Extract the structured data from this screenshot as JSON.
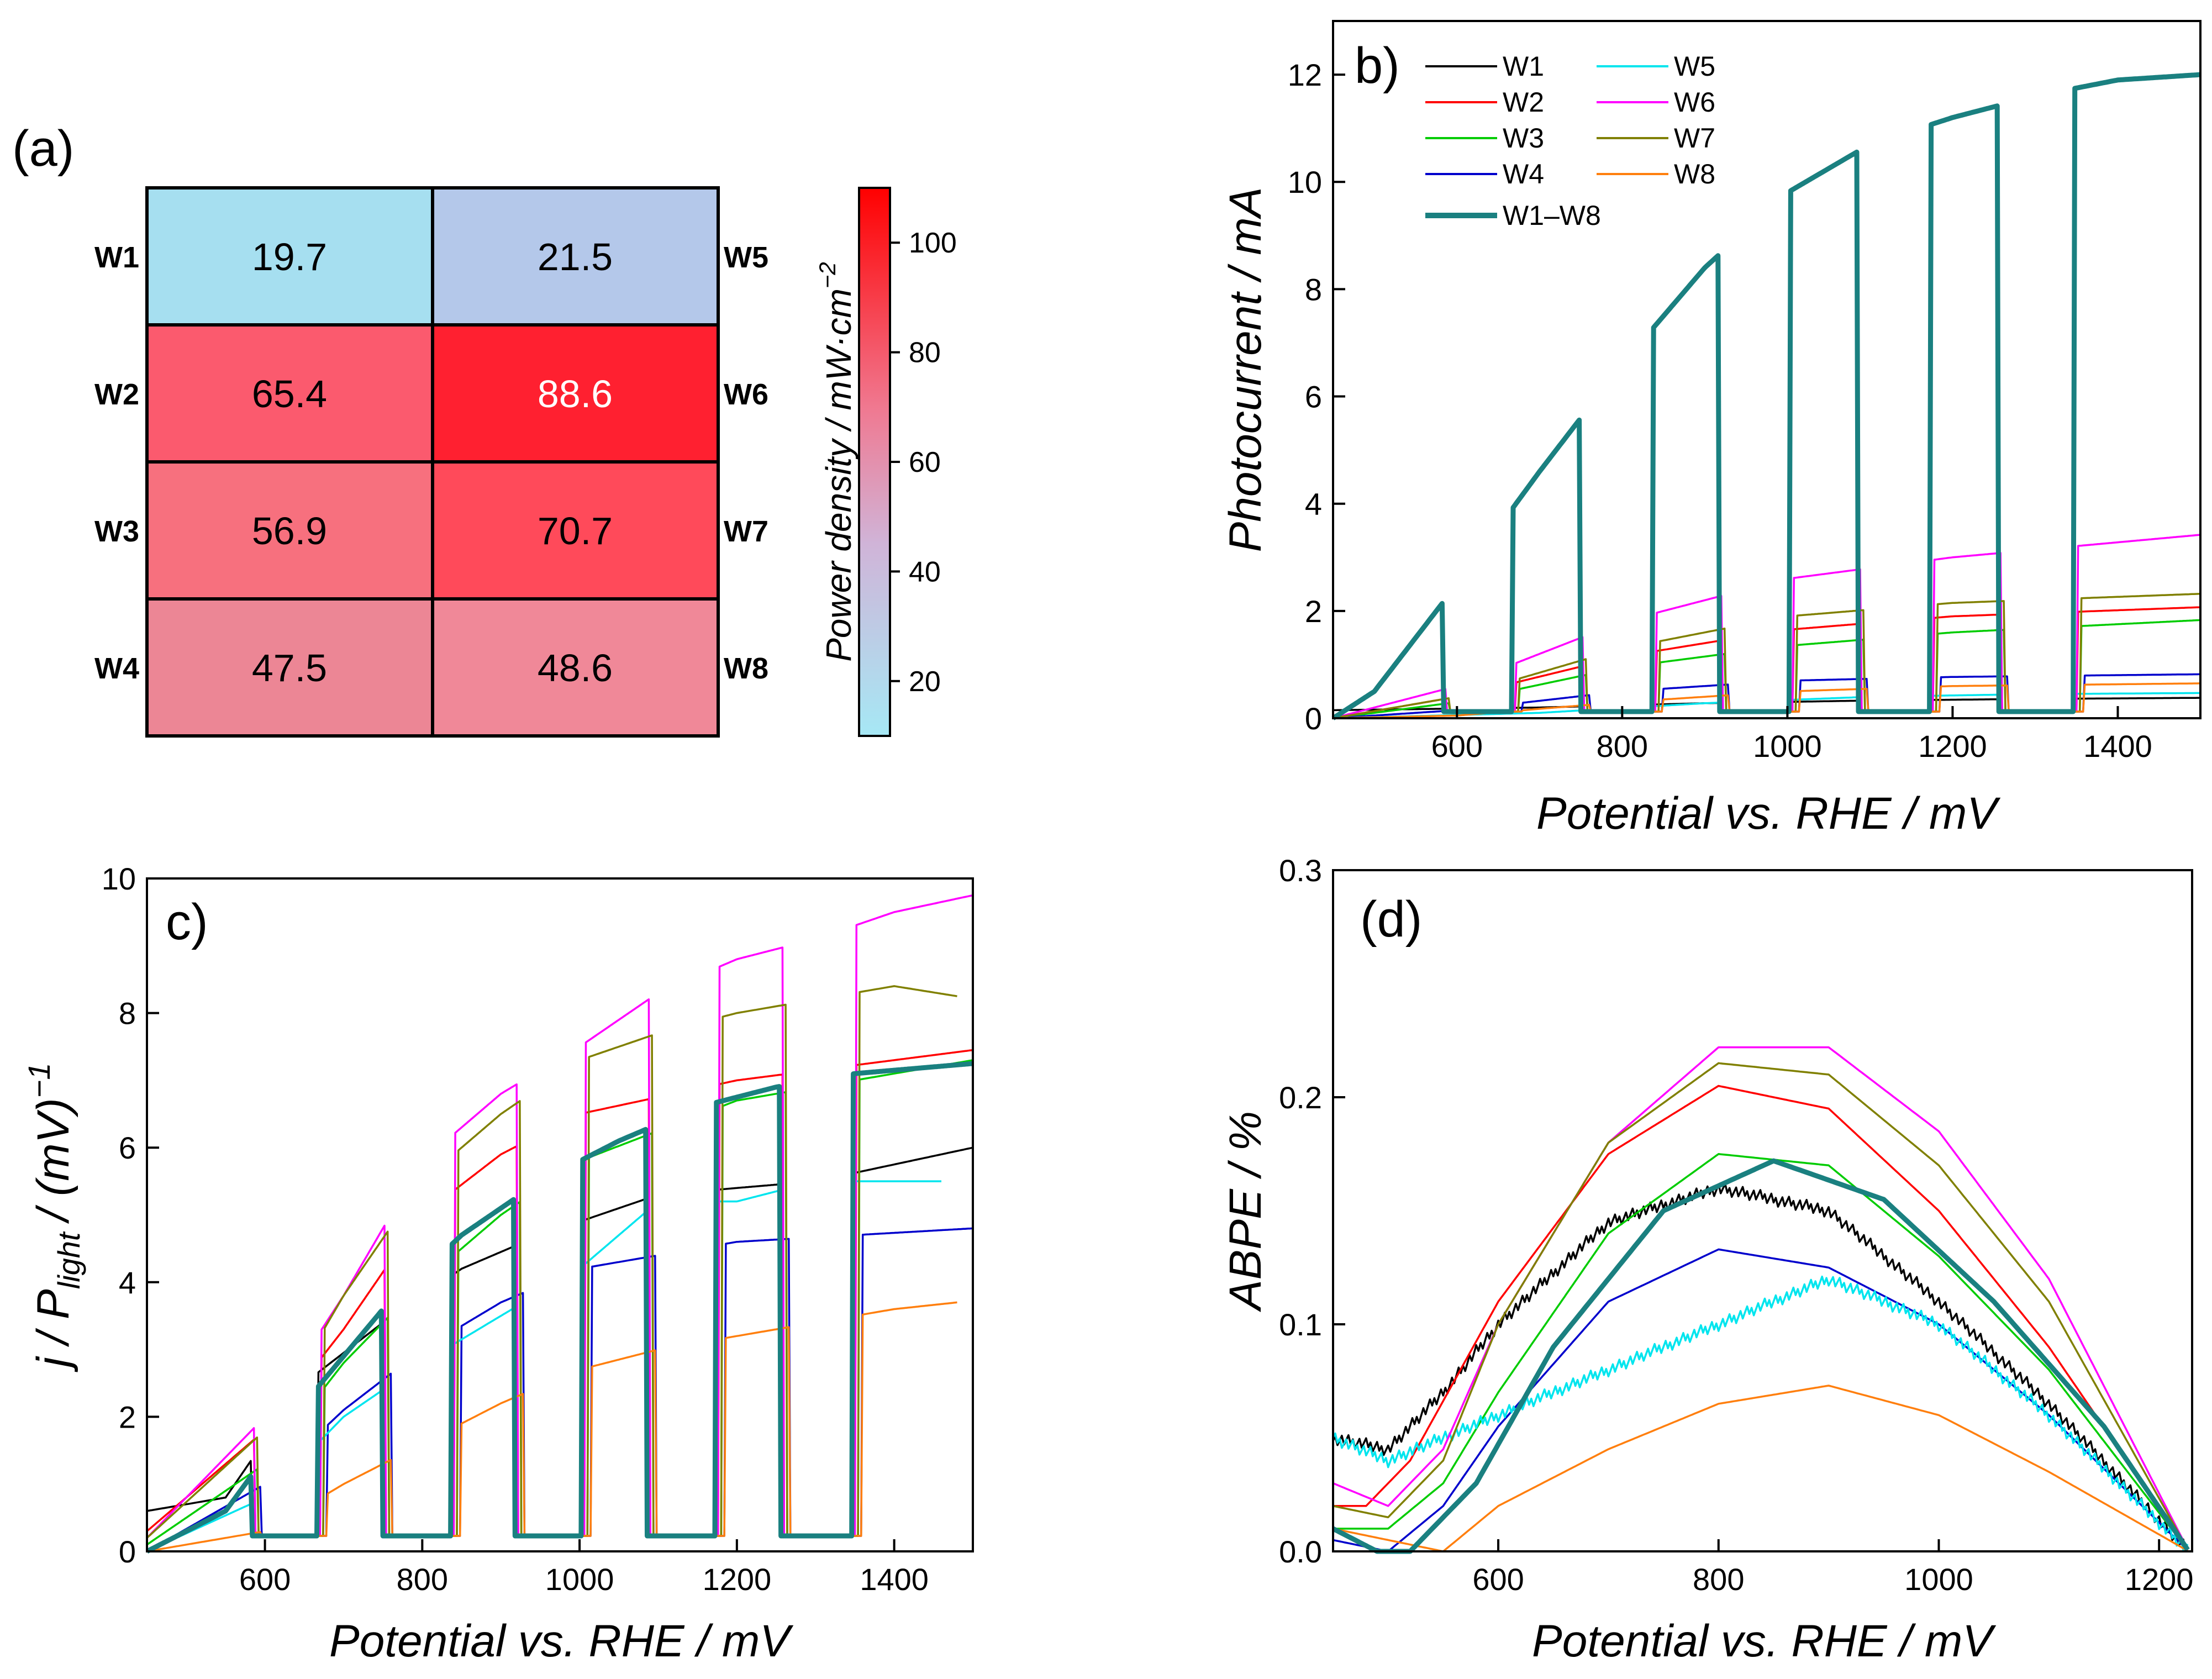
{
  "figure": {
    "panel_labels": {
      "a": "(a)",
      "b": "b)",
      "c": "c)",
      "d": "(d)"
    }
  },
  "chart_data": [
    {
      "panel": "a",
      "type": "heatmap",
      "rows_left": [
        "W1",
        "W2",
        "W3",
        "W4"
      ],
      "rows_right": [
        "W5",
        "W6",
        "W7",
        "W8"
      ],
      "values": [
        [
          19.7,
          21.5
        ],
        [
          65.4,
          88.6
        ],
        [
          56.9,
          70.7
        ],
        [
          47.5,
          48.6
        ]
      ],
      "value_labels": [
        [
          "19.7",
          "21.5"
        ],
        [
          "65.4",
          "88.6"
        ],
        [
          "56.9",
          "70.7"
        ],
        [
          "47.5",
          "48.6"
        ]
      ],
      "colorbar": {
        "label_main": "Power density / mW·cm",
        "label_exp": "−2",
        "range": [
          10,
          110
        ],
        "ticks": [
          20,
          40,
          60,
          80,
          100
        ],
        "tick_labels": [
          "20",
          "40",
          "60",
          "80",
          "100"
        ],
        "color_low": "#a6e8f5",
        "color_mid": "#d8a8c0",
        "color_high": "#ff0000"
      }
    },
    {
      "panel": "b",
      "type": "line",
      "xlabel": "Potential vs. RHE / mV",
      "ylabel": "Photocurrent / mA",
      "xlim": [
        450,
        1500
      ],
      "ylim": [
        0,
        13
      ],
      "xticks": [
        600,
        800,
        1000,
        1200,
        1400
      ],
      "xtick_labels": [
        "600",
        "800",
        "1000",
        "1200",
        "1400"
      ],
      "yticks": [
        0,
        2,
        4,
        6,
        8,
        10,
        12
      ],
      "ytick_labels": [
        "0",
        "2",
        "4",
        "6",
        "8",
        "10",
        "12"
      ],
      "chop_on": [
        [
          590,
          672
        ],
        [
          756,
          842
        ],
        [
          924,
          1008
        ],
        [
          1092,
          1178
        ],
        [
          1262,
          1352
        ]
      ],
      "legend": [
        "W1",
        "W2",
        "W3",
        "W4",
        "W5",
        "W6",
        "W7",
        "W8",
        "W1–W8"
      ],
      "series": [
        {
          "name": "W1",
          "color": "#000000",
          "x": [
            450,
            700,
            900,
            1100,
            1300,
            1500
          ],
          "y": [
            0.15,
            0.2,
            0.28,
            0.33,
            0.36,
            0.38
          ]
        },
        {
          "name": "W2",
          "color": "#ff0000",
          "x": [
            450,
            600,
            800,
            1000,
            1200,
            1500
          ],
          "y": [
            0.0,
            0.4,
            1.15,
            1.65,
            1.9,
            2.07
          ]
        },
        {
          "name": "W3",
          "color": "#00cc00",
          "x": [
            450,
            600,
            800,
            1000,
            1200,
            1500
          ],
          "y": [
            0.0,
            0.3,
            0.95,
            1.35,
            1.6,
            1.83
          ]
        },
        {
          "name": "W4",
          "color": "#0000cc",
          "x": [
            450,
            600,
            800,
            1000,
            1200,
            1500
          ],
          "y": [
            0.0,
            0.15,
            0.5,
            0.7,
            0.77,
            0.82
          ]
        },
        {
          "name": "W5",
          "color": "#00e5ee",
          "x": [
            450,
            700,
            900,
            1100,
            1300,
            1500
          ],
          "y": [
            0.0,
            0.1,
            0.28,
            0.4,
            0.45,
            0.47
          ]
        },
        {
          "name": "W6",
          "color": "#ff00ff",
          "x": [
            450,
            600,
            700,
            800,
            1000,
            1200,
            1500
          ],
          "y": [
            0.0,
            0.6,
            1.2,
            1.8,
            2.6,
            3.0,
            3.42
          ]
        },
        {
          "name": "W7",
          "color": "#808000",
          "x": [
            450,
            600,
            800,
            1000,
            1200,
            1500
          ],
          "y": [
            0.0,
            0.4,
            1.3,
            1.9,
            2.15,
            2.32
          ]
        },
        {
          "name": "W8",
          "color": "#ff7f0e",
          "x": [
            450,
            600,
            800,
            1000,
            1200,
            1500
          ],
          "y": [
            0.0,
            0.05,
            0.3,
            0.5,
            0.6,
            0.65
          ]
        },
        {
          "name": "W1–W8",
          "color": "#1a8080",
          "x": [
            450,
            500,
            550,
            600,
            700,
            800,
            900,
            1000,
            1100,
            1200,
            1300,
            1400,
            1500
          ],
          "y": [
            0.0,
            0.5,
            1.5,
            2.5,
            4.6,
            6.6,
            8.4,
            9.8,
            10.7,
            11.2,
            11.6,
            11.9,
            12.0
          ]
        }
      ]
    },
    {
      "panel": "c",
      "type": "line",
      "xlabel": "Potential vs. RHE / mV",
      "ylabel_main": "j / P",
      "ylabel_sub": "light",
      "ylabel_tail": "/ (mV)",
      "ylabel_exp": "−1",
      "xlim": [
        450,
        1500
      ],
      "ylim": [
        0,
        10
      ],
      "xticks": [
        600,
        800,
        1000,
        1200,
        1400
      ],
      "xtick_labels": [
        "600",
        "800",
        "1000",
        "1200",
        "1400"
      ],
      "yticks": [
        0,
        2,
        4,
        6,
        8,
        10
      ],
      "ytick_labels": [
        "0",
        "2",
        "4",
        "6",
        "8",
        "10"
      ],
      "chop_on": [
        [
          590,
          672
        ],
        [
          756,
          842
        ],
        [
          924,
          1008
        ],
        [
          1092,
          1178
        ],
        [
          1262,
          1352
        ]
      ],
      "series": [
        {
          "name": "W1",
          "color": "#000000",
          "x": [
            450,
            550,
            650,
            750,
            850,
            950,
            1100,
            1300,
            1500
          ],
          "y": [
            0.6,
            0.8,
            2.5,
            3.4,
            4.2,
            4.7,
            5.3,
            5.5,
            6.0
          ]
        },
        {
          "name": "W2",
          "color": "#ff0000",
          "x": [
            450,
            600,
            700,
            800,
            900,
            1000,
            1200,
            1500
          ],
          "y": [
            0.3,
            1.8,
            3.3,
            5.0,
            5.9,
            6.5,
            7.0,
            7.45
          ]
        },
        {
          "name": "W3",
          "color": "#00cc00",
          "x": [
            450,
            600,
            700,
            800,
            900,
            1000,
            1200,
            1500
          ],
          "y": [
            0.1,
            1.3,
            2.8,
            4.0,
            5.0,
            5.8,
            6.7,
            7.3
          ]
        },
        {
          "name": "W4",
          "color": "#0000cc",
          "x": [
            450,
            600,
            700,
            800,
            900,
            1000,
            1200,
            1500
          ],
          "y": [
            0.0,
            1.0,
            2.1,
            3.0,
            3.7,
            4.2,
            4.6,
            4.8
          ]
        },
        {
          "name": "W5",
          "color": "#00e5ee",
          "x": [
            450,
            600,
            700,
            800,
            900,
            1000,
            1100,
            1200,
            1300,
            1460
          ],
          "y": [
            0.0,
            0.8,
            2.0,
            2.8,
            3.5,
            4.2,
            5.2,
            5.2,
            5.5,
            5.5
          ]
        },
        {
          "name": "W6",
          "color": "#ff00ff",
          "x": [
            450,
            600,
            700,
            800,
            900,
            1000,
            1100,
            1200,
            1300,
            1400,
            1500
          ],
          "y": [
            0.2,
            2.0,
            3.8,
            5.8,
            6.8,
            7.5,
            8.3,
            8.8,
            9.1,
            9.5,
            9.75
          ]
        },
        {
          "name": "W7",
          "color": "#808000",
          "x": [
            450,
            600,
            700,
            800,
            900,
            1000,
            1100,
            1200,
            1300,
            1400,
            1480
          ],
          "y": [
            0.2,
            1.8,
            3.8,
            5.5,
            6.5,
            7.3,
            7.7,
            8.0,
            8.2,
            8.4,
            8.25
          ]
        },
        {
          "name": "W8",
          "color": "#ff7f0e",
          "x": [
            450,
            600,
            700,
            800,
            900,
            1000,
            1100,
            1200,
            1300,
            1400,
            1480
          ],
          "y": [
            0.0,
            0.3,
            1.0,
            1.6,
            2.2,
            2.7,
            3.0,
            3.2,
            3.4,
            3.6,
            3.7
          ]
        },
        {
          "name": "W1–W8",
          "color": "#1a8080",
          "x": [
            450,
            550,
            650,
            750,
            850,
            950,
            1050,
            1150,
            1250,
            1350,
            1500
          ],
          "y": [
            0.0,
            0.6,
            2.2,
            3.6,
            4.7,
            5.5,
            6.1,
            6.6,
            6.9,
            7.1,
            7.25
          ]
        }
      ]
    },
    {
      "panel": "d",
      "type": "line",
      "xlabel": "Potential vs. RHE / mV",
      "ylabel": "ABPE / %",
      "xlim": [
        450,
        1230
      ],
      "ylim": [
        0,
        0.3
      ],
      "xticks": [
        600,
        800,
        1000,
        1200
      ],
      "xtick_labels": [
        "600",
        "800",
        "1000",
        "1200"
      ],
      "yticks": [
        0.0,
        0.1,
        0.2,
        0.3
      ],
      "ytick_labels": [
        "0.0",
        "0.1",
        "0.2",
        "0.3"
      ],
      "series": [
        {
          "name": "W1",
          "color": "#000000",
          "x": [
            450,
            500,
            550,
            600,
            700,
            800,
            900,
            1000,
            1100,
            1227
          ],
          "y": [
            0.05,
            0.045,
            0.07,
            0.1,
            0.145,
            0.16,
            0.15,
            0.11,
            0.065,
            0.0
          ]
        },
        {
          "name": "W2",
          "color": "#ff0000",
          "x": [
            450,
            480,
            520,
            600,
            700,
            800,
            900,
            1000,
            1100,
            1227
          ],
          "y": [
            0.02,
            0.02,
            0.04,
            0.11,
            0.175,
            0.205,
            0.195,
            0.15,
            0.09,
            0.0
          ]
        },
        {
          "name": "W3",
          "color": "#00cc00",
          "x": [
            450,
            500,
            550,
            600,
            700,
            800,
            900,
            1000,
            1100,
            1227
          ],
          "y": [
            0.01,
            0.01,
            0.03,
            0.07,
            0.14,
            0.175,
            0.17,
            0.13,
            0.08,
            0.0
          ]
        },
        {
          "name": "W4",
          "color": "#0000cc",
          "x": [
            450,
            500,
            550,
            600,
            700,
            800,
            900,
            1000,
            1100,
            1227
          ],
          "y": [
            0.005,
            0.0,
            0.02,
            0.055,
            0.11,
            0.133,
            0.125,
            0.1,
            0.06,
            0.0
          ]
        },
        {
          "name": "W5",
          "color": "#00e5ee",
          "x": [
            450,
            500,
            550,
            600,
            700,
            800,
            900,
            1000,
            1100,
            1227
          ],
          "y": [
            0.05,
            0.04,
            0.05,
            0.06,
            0.08,
            0.1,
            0.12,
            0.1,
            0.06,
            0.0
          ]
        },
        {
          "name": "W6",
          "color": "#ff00ff",
          "x": [
            450,
            500,
            550,
            600,
            700,
            800,
            900,
            1000,
            1100,
            1227
          ],
          "y": [
            0.03,
            0.02,
            0.045,
            0.1,
            0.18,
            0.222,
            0.222,
            0.185,
            0.12,
            0.0
          ]
        },
        {
          "name": "W7",
          "color": "#808000",
          "x": [
            450,
            500,
            550,
            600,
            700,
            800,
            900,
            1000,
            1100,
            1227
          ],
          "y": [
            0.02,
            0.015,
            0.04,
            0.1,
            0.18,
            0.215,
            0.21,
            0.17,
            0.11,
            0.0
          ]
        },
        {
          "name": "W8",
          "color": "#ff7f0e",
          "x": [
            450,
            500,
            550,
            600,
            700,
            800,
            900,
            1000,
            1100,
            1227
          ],
          "y": [
            0.01,
            0.005,
            0.0,
            0.02,
            0.045,
            0.065,
            0.073,
            0.06,
            0.035,
            0.0
          ]
        },
        {
          "name": "W1–W8",
          "color": "#1a8080",
          "x": [
            450,
            490,
            520,
            580,
            650,
            750,
            850,
            950,
            1050,
            1150,
            1227
          ],
          "y": [
            0.01,
            0.0,
            0.0,
            0.03,
            0.09,
            0.15,
            0.172,
            0.155,
            0.11,
            0.055,
            0.0
          ]
        }
      ]
    }
  ]
}
